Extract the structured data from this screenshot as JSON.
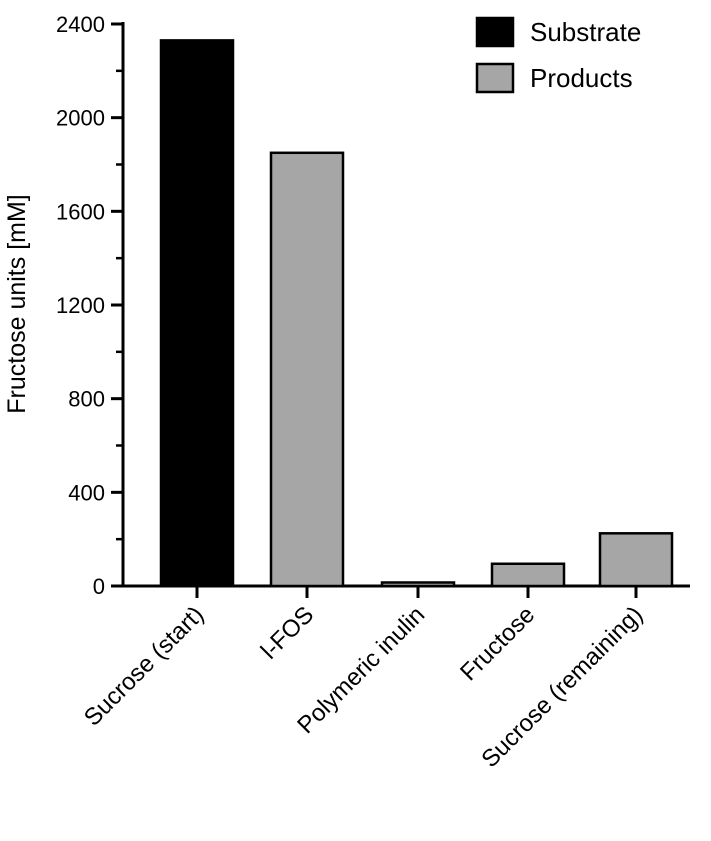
{
  "chart_data": {
    "type": "bar",
    "title": "",
    "xlabel": "",
    "ylabel": "Fructose units [mM]",
    "ylim": [
      0,
      2400
    ],
    "yticks": [
      0,
      400,
      800,
      1200,
      1600,
      2000,
      2400
    ],
    "grid": false,
    "legend_position": "top-right",
    "categories": [
      "Sucrose (start)",
      "l-FOS",
      "Polymeric inulin",
      "Fructose",
      "Sucrose (remaining)"
    ],
    "values": [
      2330,
      1850,
      15,
      95,
      225
    ],
    "groups": [
      "Substrate",
      "Products",
      "Products",
      "Products",
      "Products"
    ],
    "series": [
      {
        "name": "Substrate",
        "color": "#000000"
      },
      {
        "name": "Products",
        "color": "#a6a6a6"
      }
    ]
  }
}
